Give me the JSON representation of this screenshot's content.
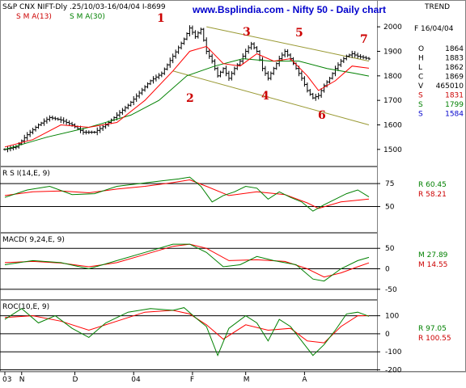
{
  "header": {
    "instrument": "S&P CNX NIFT-Dly .25/10/03-16/04/04 I-8699",
    "sma1_label": "S M A(13)",
    "sma2_label": "S M A(30)",
    "site_title": "www.Bsplindia.com - Nifty 50 - Daily chart",
    "trend_label": "TREND"
  },
  "colors": {
    "price_bars": "#000000",
    "sma13": "#ff0000",
    "sma30": "#008000",
    "channel": "#999933",
    "wave_labels": "#cc0000",
    "title": "#0000cc",
    "blue_value": "#0000cc"
  },
  "info_panel": {
    "date": "F 16/04/04",
    "rows": [
      {
        "k": "O",
        "v": "1864",
        "color": "#000000"
      },
      {
        "k": "H",
        "v": "1883",
        "color": "#000000"
      },
      {
        "k": "L",
        "v": "1862",
        "color": "#000000"
      },
      {
        "k": "C",
        "v": "1869",
        "color": "#000000"
      },
      {
        "k": "V",
        "v": "465010",
        "color": "#000000"
      },
      {
        "k": "S",
        "v": "1831",
        "color": "#cc0000"
      },
      {
        "k": "S",
        "v": "1799",
        "color": "#008000"
      },
      {
        "k": "S",
        "v": "1584",
        "color": "#0000cc"
      }
    ]
  },
  "wave_labels": [
    "1",
    "2",
    "3",
    "4",
    "5",
    "6",
    "7"
  ],
  "indicators": {
    "rsi": {
      "label": "R S I(14,E, 9)",
      "r1": "R  60.45",
      "r2": "R  58.21",
      "ticks": [
        "75",
        "50"
      ]
    },
    "macd": {
      "label": "MACD( 9,24,E, 9)",
      "m1": "M  27.89",
      "m2": "M  14.55",
      "ticks": [
        "50",
        "0",
        "-50"
      ]
    },
    "roc": {
      "label": "ROC(10,E, 9)",
      "r1": "R  97.05",
      "r2": "R  100.55",
      "ticks": [
        "100",
        "0",
        "-100",
        "-200"
      ]
    }
  },
  "x_axis_labels": [
    "03",
    "N",
    "D",
    "04",
    "F",
    "M",
    "A"
  ],
  "chart_data": {
    "type": "line",
    "x_range": [
      "2003-10-25",
      "2004-04-16"
    ],
    "price": {
      "ylim": [
        1450,
        2050
      ],
      "ticks": [
        "2000",
        "1900",
        "1800",
        "1700",
        "1600",
        "1500"
      ],
      "close_path": [
        [
          0,
          1500
        ],
        [
          4,
          1510
        ],
        [
          8,
          1560
        ],
        [
          12,
          1600
        ],
        [
          16,
          1630
        ],
        [
          20,
          1620
        ],
        [
          24,
          1600
        ],
        [
          28,
          1570
        ],
        [
          32,
          1570
        ],
        [
          36,
          1600
        ],
        [
          40,
          1640
        ],
        [
          44,
          1680
        ],
        [
          48,
          1730
        ],
        [
          52,
          1780
        ],
        [
          56,
          1810
        ],
        [
          60,
          1880
        ],
        [
          64,
          1950
        ],
        [
          66,
          1995
        ],
        [
          68,
          1960
        ],
        [
          70,
          1990
        ],
        [
          72,
          1900
        ],
        [
          74,
          1860
        ],
        [
          76,
          1800
        ],
        [
          78,
          1830
        ],
        [
          80,
          1790
        ],
        [
          82,
          1830
        ],
        [
          84,
          1860
        ],
        [
          86,
          1900
        ],
        [
          88,
          1930
        ],
        [
          90,
          1900
        ],
        [
          92,
          1830
        ],
        [
          94,
          1790
        ],
        [
          96,
          1830
        ],
        [
          98,
          1870
        ],
        [
          100,
          1900
        ],
        [
          102,
          1870
        ],
        [
          104,
          1830
        ],
        [
          106,
          1790
        ],
        [
          108,
          1740
        ],
        [
          110,
          1710
        ],
        [
          112,
          1720
        ],
        [
          114,
          1760
        ],
        [
          116,
          1790
        ],
        [
          118,
          1830
        ],
        [
          120,
          1860
        ],
        [
          122,
          1880
        ],
        [
          124,
          1890
        ],
        [
          126,
          1880
        ],
        [
          128,
          1875
        ],
        [
          130,
          1869
        ]
      ],
      "sma13_path": [
        [
          0,
          1510
        ],
        [
          10,
          1540
        ],
        [
          20,
          1600
        ],
        [
          30,
          1590
        ],
        [
          40,
          1610
        ],
        [
          50,
          1700
        ],
        [
          60,
          1820
        ],
        [
          66,
          1900
        ],
        [
          72,
          1920
        ],
        [
          78,
          1850
        ],
        [
          84,
          1840
        ],
        [
          90,
          1890
        ],
        [
          96,
          1860
        ],
        [
          102,
          1870
        ],
        [
          108,
          1800
        ],
        [
          112,
          1740
        ],
        [
          118,
          1780
        ],
        [
          124,
          1840
        ],
        [
          130,
          1831
        ]
      ],
      "sma30_path": [
        [
          0,
          1500
        ],
        [
          15,
          1550
        ],
        [
          30,
          1590
        ],
        [
          45,
          1640
        ],
        [
          55,
          1700
        ],
        [
          65,
          1800
        ],
        [
          75,
          1840
        ],
        [
          85,
          1870
        ],
        [
          95,
          1860
        ],
        [
          105,
          1860
        ],
        [
          115,
          1830
        ],
        [
          125,
          1810
        ],
        [
          130,
          1799
        ]
      ],
      "channel_upper": [
        [
          72,
          2000
        ],
        [
          130,
          1860
        ]
      ],
      "channel_lower": [
        [
          60,
          1820
        ],
        [
          130,
          1600
        ]
      ]
    },
    "rsi": {
      "ylim": [
        25,
        90
      ],
      "ref_lines": [
        75,
        50
      ],
      "rsi_path": [
        [
          0,
          60
        ],
        [
          8,
          68
        ],
        [
          16,
          72
        ],
        [
          24,
          63
        ],
        [
          32,
          64
        ],
        [
          40,
          72
        ],
        [
          48,
          75
        ],
        [
          56,
          78
        ],
        [
          62,
          80
        ],
        [
          66,
          82
        ],
        [
          70,
          72
        ],
        [
          74,
          55
        ],
        [
          78,
          62
        ],
        [
          82,
          66
        ],
        [
          86,
          72
        ],
        [
          90,
          70
        ],
        [
          94,
          58
        ],
        [
          98,
          66
        ],
        [
          102,
          60
        ],
        [
          106,
          55
        ],
        [
          110,
          45
        ],
        [
          114,
          52
        ],
        [
          118,
          58
        ],
        [
          122,
          64
        ],
        [
          126,
          68
        ],
        [
          130,
          60.45
        ]
      ],
      "signal_path": [
        [
          0,
          62
        ],
        [
          10,
          66
        ],
        [
          20,
          67
        ],
        [
          30,
          65
        ],
        [
          40,
          69
        ],
        [
          50,
          72
        ],
        [
          60,
          76
        ],
        [
          66,
          79
        ],
        [
          72,
          72
        ],
        [
          80,
          62
        ],
        [
          90,
          66
        ],
        [
          100,
          63
        ],
        [
          108,
          54
        ],
        [
          112,
          48
        ],
        [
          120,
          55
        ],
        [
          130,
          58.21
        ]
      ]
    },
    "macd": {
      "ylim": [
        -70,
        80
      ],
      "ref_lines": [
        50,
        0,
        -50
      ],
      "macd_path": [
        [
          0,
          10
        ],
        [
          10,
          20
        ],
        [
          20,
          15
        ],
        [
          30,
          0
        ],
        [
          40,
          20
        ],
        [
          50,
          40
        ],
        [
          60,
          60
        ],
        [
          66,
          60
        ],
        [
          72,
          40
        ],
        [
          78,
          5
        ],
        [
          84,
          10
        ],
        [
          90,
          30
        ],
        [
          96,
          20
        ],
        [
          104,
          10
        ],
        [
          110,
          -25
        ],
        [
          114,
          -30
        ],
        [
          120,
          0
        ],
        [
          126,
          20
        ],
        [
          130,
          27.89
        ]
      ],
      "signal_path": [
        [
          0,
          15
        ],
        [
          10,
          18
        ],
        [
          20,
          14
        ],
        [
          30,
          5
        ],
        [
          40,
          15
        ],
        [
          50,
          35
        ],
        [
          60,
          55
        ],
        [
          66,
          60
        ],
        [
          72,
          50
        ],
        [
          80,
          20
        ],
        [
          90,
          22
        ],
        [
          100,
          18
        ],
        [
          108,
          0
        ],
        [
          114,
          -20
        ],
        [
          120,
          -10
        ],
        [
          126,
          5
        ],
        [
          130,
          14.55
        ]
      ]
    },
    "roc": {
      "ylim": [
        -220,
        170
      ],
      "ref_lines": [
        100,
        0,
        -100,
        -200
      ],
      "roc_path": [
        [
          0,
          80
        ],
        [
          6,
          140
        ],
        [
          12,
          60
        ],
        [
          18,
          100
        ],
        [
          24,
          30
        ],
        [
          30,
          -20
        ],
        [
          36,
          60
        ],
        [
          44,
          120
        ],
        [
          52,
          140
        ],
        [
          60,
          130
        ],
        [
          64,
          145
        ],
        [
          68,
          90
        ],
        [
          72,
          40
        ],
        [
          76,
          -120
        ],
        [
          80,
          30
        ],
        [
          86,
          100
        ],
        [
          90,
          60
        ],
        [
          94,
          -40
        ],
        [
          98,
          80
        ],
        [
          102,
          40
        ],
        [
          106,
          -40
        ],
        [
          110,
          -120
        ],
        [
          114,
          -60
        ],
        [
          118,
          20
        ],
        [
          122,
          110
        ],
        [
          126,
          120
        ],
        [
          130,
          97.05
        ]
      ],
      "signal_path": [
        [
          0,
          90
        ],
        [
          10,
          100
        ],
        [
          20,
          70
        ],
        [
          30,
          20
        ],
        [
          40,
          70
        ],
        [
          50,
          120
        ],
        [
          60,
          130
        ],
        [
          66,
          110
        ],
        [
          72,
          50
        ],
        [
          78,
          -30
        ],
        [
          86,
          50
        ],
        [
          94,
          20
        ],
        [
          102,
          30
        ],
        [
          108,
          -40
        ],
        [
          114,
          -50
        ],
        [
          120,
          40
        ],
        [
          126,
          100
        ],
        [
          130,
          100.55
        ]
      ]
    }
  }
}
